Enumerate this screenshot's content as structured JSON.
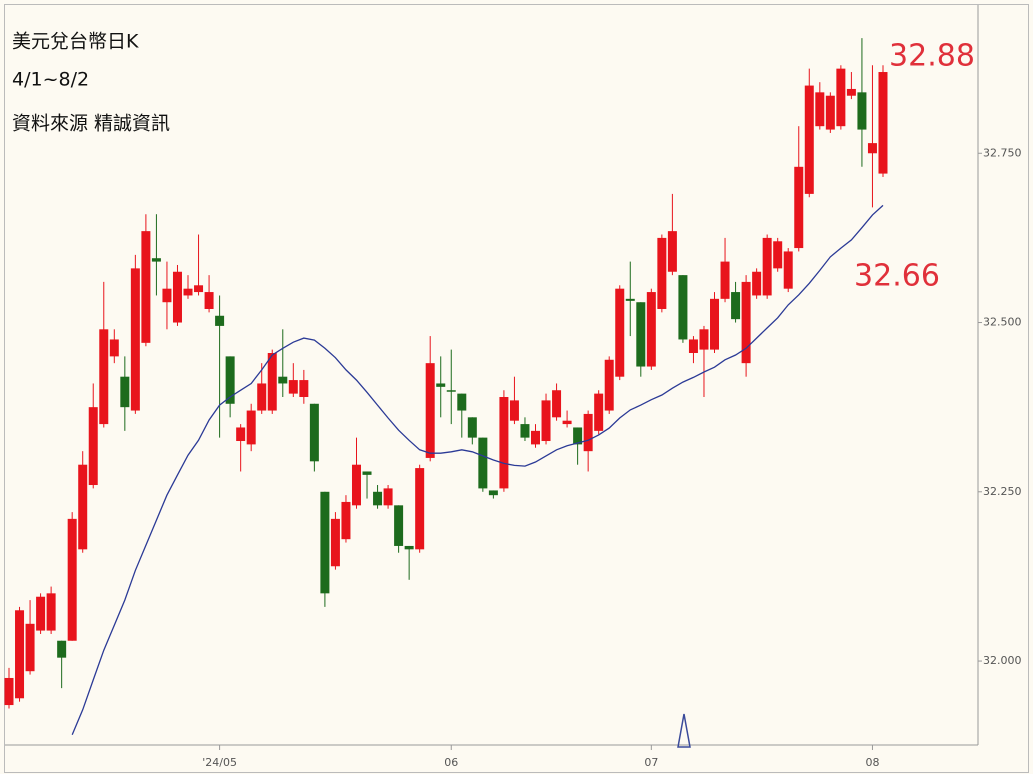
{
  "chart_data": {
    "type": "candlestick",
    "title": "美元兌台幣日K",
    "subtitle": "4/1~8/2",
    "source": "資料來源 精誠資訊",
    "annotations": [
      "32.88",
      "32.66"
    ],
    "annotation_color": "#e0303a",
    "up_color": "#e8141c",
    "down_color": "#1d6b1d",
    "categories": [
      null,
      null,
      null,
      null,
      null,
      null,
      null,
      null,
      null,
      null,
      null,
      null,
      null,
      null,
      null,
      null,
      null,
      null,
      null,
      null,
      "'24/05",
      null,
      null,
      null,
      null,
      null,
      null,
      null,
      null,
      null,
      null,
      null,
      null,
      null,
      null,
      null,
      null,
      null,
      null,
      null,
      null,
      null,
      "06",
      null,
      null,
      null,
      null,
      null,
      null,
      null,
      null,
      null,
      null,
      null,
      null,
      null,
      null,
      null,
      null,
      null,
      null,
      "07",
      null,
      null,
      null,
      null,
      null,
      null,
      null,
      null,
      null,
      null,
      null,
      null,
      null,
      null,
      null,
      null,
      null,
      null,
      null,
      null,
      "08",
      null
    ],
    "open": [
      31.935,
      31.945,
      31.985,
      32.045,
      32.045,
      32.03,
      32.03,
      32.165,
      32.26,
      32.35,
      32.45,
      32.42,
      32.37,
      32.47,
      32.595,
      32.53,
      32.5,
      32.54,
      32.545,
      32.52,
      32.51,
      32.45,
      32.325,
      32.32,
      32.37,
      32.37,
      32.42,
      32.395,
      32.39,
      32.38,
      32.25,
      32.14,
      32.18,
      32.23,
      32.28,
      32.25,
      32.23,
      32.23,
      32.17,
      32.165,
      32.3,
      32.41,
      32.4,
      32.395,
      32.36,
      32.33,
      32.252,
      32.255,
      32.355,
      32.35,
      32.32,
      32.325,
      32.36,
      32.35,
      32.345,
      32.31,
      32.34,
      32.37,
      32.42,
      32.535,
      32.53,
      32.435,
      32.52,
      32.575,
      32.57,
      32.455,
      32.46,
      32.46,
      32.535,
      32.545,
      32.44,
      32.54,
      32.54,
      32.58,
      32.55,
      32.61,
      32.69,
      32.79,
      32.785,
      32.79,
      32.835,
      32.84,
      32.75,
      32.72
    ],
    "high": [
      31.99,
      32.08,
      32.09,
      32.1,
      32.11,
      32.03,
      32.22,
      32.31,
      32.41,
      32.56,
      32.49,
      32.45,
      32.6,
      32.66,
      32.66,
      32.59,
      32.585,
      32.57,
      32.63,
      32.57,
      32.54,
      32.45,
      32.35,
      32.38,
      32.44,
      32.46,
      32.49,
      32.44,
      32.43,
      32.38,
      32.25,
      32.22,
      32.245,
      32.33,
      32.28,
      32.26,
      32.26,
      32.23,
      32.17,
      32.29,
      32.48,
      32.45,
      32.46,
      32.395,
      32.36,
      32.33,
      32.252,
      32.4,
      32.42,
      32.36,
      32.35,
      32.395,
      32.41,
      32.37,
      32.345,
      32.37,
      32.4,
      32.45,
      32.555,
      32.59,
      32.53,
      32.55,
      32.63,
      32.69,
      32.57,
      32.48,
      32.495,
      32.545,
      32.625,
      32.56,
      32.57,
      32.58,
      32.63,
      32.625,
      32.61,
      32.79,
      32.875,
      32.855,
      32.84,
      32.88,
      32.87,
      32.92,
      32.88,
      32.88
    ],
    "low": [
      31.93,
      31.94,
      31.98,
      32.04,
      32.04,
      31.96,
      32.03,
      32.16,
      32.255,
      32.345,
      32.44,
      32.34,
      32.365,
      32.465,
      32.54,
      32.49,
      32.495,
      32.535,
      32.54,
      32.515,
      32.33,
      32.36,
      32.28,
      32.31,
      32.365,
      32.365,
      32.39,
      32.39,
      32.38,
      32.28,
      32.08,
      32.135,
      32.175,
      32.225,
      32.24,
      32.225,
      32.225,
      32.16,
      32.12,
      32.16,
      32.295,
      32.36,
      32.35,
      32.33,
      32.32,
      32.25,
      32.24,
      32.25,
      32.35,
      32.325,
      32.315,
      32.32,
      32.355,
      32.345,
      32.29,
      32.28,
      32.335,
      32.365,
      32.415,
      32.48,
      32.42,
      32.43,
      32.515,
      32.57,
      32.47,
      32.44,
      32.39,
      32.455,
      32.53,
      32.5,
      32.42,
      32.535,
      32.535,
      32.575,
      32.545,
      32.605,
      32.685,
      32.785,
      32.78,
      32.785,
      32.83,
      32.73,
      32.67,
      32.715
    ],
    "close": [
      31.975,
      32.075,
      32.055,
      32.095,
      32.1,
      32.005,
      32.21,
      32.29,
      32.375,
      32.49,
      32.475,
      32.375,
      32.58,
      32.635,
      32.59,
      32.55,
      32.575,
      32.55,
      32.555,
      32.545,
      32.495,
      32.38,
      32.345,
      32.37,
      32.41,
      32.455,
      32.41,
      32.415,
      32.415,
      32.295,
      32.1,
      32.21,
      32.235,
      32.29,
      32.275,
      32.23,
      32.255,
      32.17,
      32.165,
      32.285,
      32.44,
      32.405,
      32.398,
      32.37,
      32.33,
      32.255,
      32.245,
      32.39,
      32.385,
      32.33,
      32.34,
      32.385,
      32.4,
      32.355,
      32.32,
      32.365,
      32.395,
      32.445,
      32.55,
      32.532,
      32.435,
      32.545,
      32.625,
      32.635,
      32.475,
      32.475,
      32.49,
      32.535,
      32.59,
      32.505,
      32.56,
      32.575,
      32.625,
      32.62,
      32.605,
      32.73,
      32.85,
      32.84,
      32.835,
      32.875,
      32.845,
      32.785,
      32.765,
      32.87
    ],
    "ma": {
      "color": "#2b3a96",
      "values": [
        null,
        null,
        null,
        null,
        null,
        null,
        31.891,
        31.928,
        31.972,
        32.016,
        32.053,
        32.09,
        32.134,
        32.171,
        32.208,
        32.245,
        32.275,
        32.304,
        32.326,
        32.356,
        32.378,
        32.39,
        32.4,
        32.41,
        32.43,
        32.452,
        32.462,
        32.471,
        32.477,
        32.474,
        32.462,
        32.448,
        32.43,
        32.415,
        32.397,
        32.378,
        32.359,
        32.341,
        32.326,
        32.312,
        32.307,
        32.307,
        32.309,
        32.312,
        32.309,
        32.303,
        32.297,
        32.292,
        32.289,
        32.288,
        32.294,
        32.303,
        32.312,
        32.318,
        32.322,
        32.326,
        32.334,
        32.344,
        32.359,
        32.371,
        32.378,
        32.386,
        32.393,
        32.403,
        32.412,
        32.419,
        32.427,
        32.434,
        32.445,
        32.452,
        32.462,
        32.477,
        32.492,
        32.507,
        32.526,
        32.541,
        32.558,
        32.577,
        32.597,
        32.61,
        32.622,
        32.64,
        32.659,
        32.673
      ]
    },
    "ylim": [
      31.876,
      32.969
    ],
    "yticks": [
      {
        "value": 32,
        "label": "32.000"
      },
      {
        "value": 32.25,
        "label": "32.250"
      },
      {
        "value": 32.5,
        "label": "32.500"
      },
      {
        "value": 32.75,
        "label": "32.750"
      }
    ],
    "grid": false
  }
}
